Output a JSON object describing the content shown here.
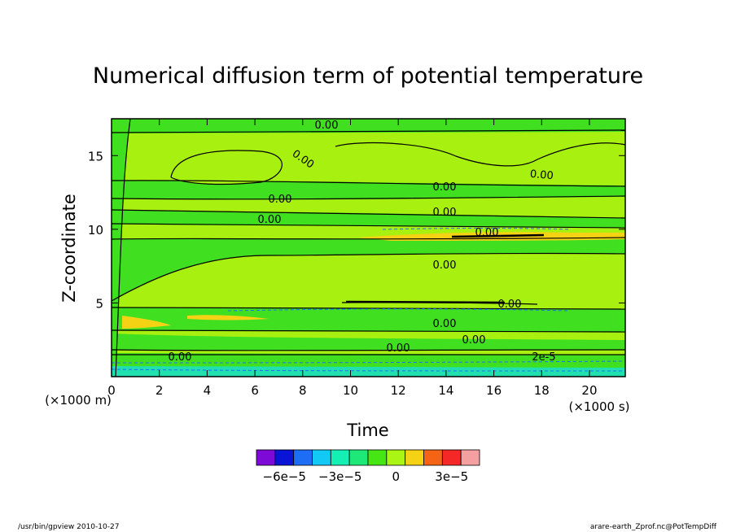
{
  "chart_data": {
    "type": "heatmap",
    "title": "Numerical diffusion term of potential temperature",
    "xlabel": "Time",
    "ylabel": "Z-coordinate",
    "x_unit": "(×1000 s)",
    "y_unit": "(×1000 m)",
    "xlim": [
      0,
      21.5
    ],
    "ylim": [
      0,
      17.5
    ],
    "x_ticks": [
      "0",
      "2",
      "4",
      "6",
      "8",
      "10",
      "12",
      "14",
      "16",
      "18",
      "20"
    ],
    "y_ticks": [
      "5",
      "10",
      "15"
    ],
    "contour_labels": [
      "0.00",
      "0.00",
      "0.00",
      "0.00",
      "0.00",
      "0.00",
      "0.00",
      "0.00",
      "0.00",
      "0.00",
      "0.00",
      "0.00",
      "0.00",
      "0.00",
      "2e-5"
    ],
    "colorbar": {
      "tick_labels": [
        "−6e−5",
        "−3e−5",
        "0",
        "3e−5"
      ],
      "colors": [
        "#7d0ad6",
        "#0a14d6",
        "#1e6ef5",
        "#12c8f5",
        "#14f0b4",
        "#1ee878",
        "#46e614",
        "#aaf514",
        "#f5d214",
        "#f56414",
        "#f52828",
        "#f5a0a0"
      ]
    }
  },
  "colors": {
    "band_green": "#40e020",
    "band_lime": "#a8f010",
    "band_yellow": "#f5d214",
    "band_cyan": "#20e0b0"
  },
  "footer": {
    "left": "/usr/bin/gpview   2010-10-27",
    "right": "arare-earth_Zprof.nc@PotTempDiff"
  }
}
